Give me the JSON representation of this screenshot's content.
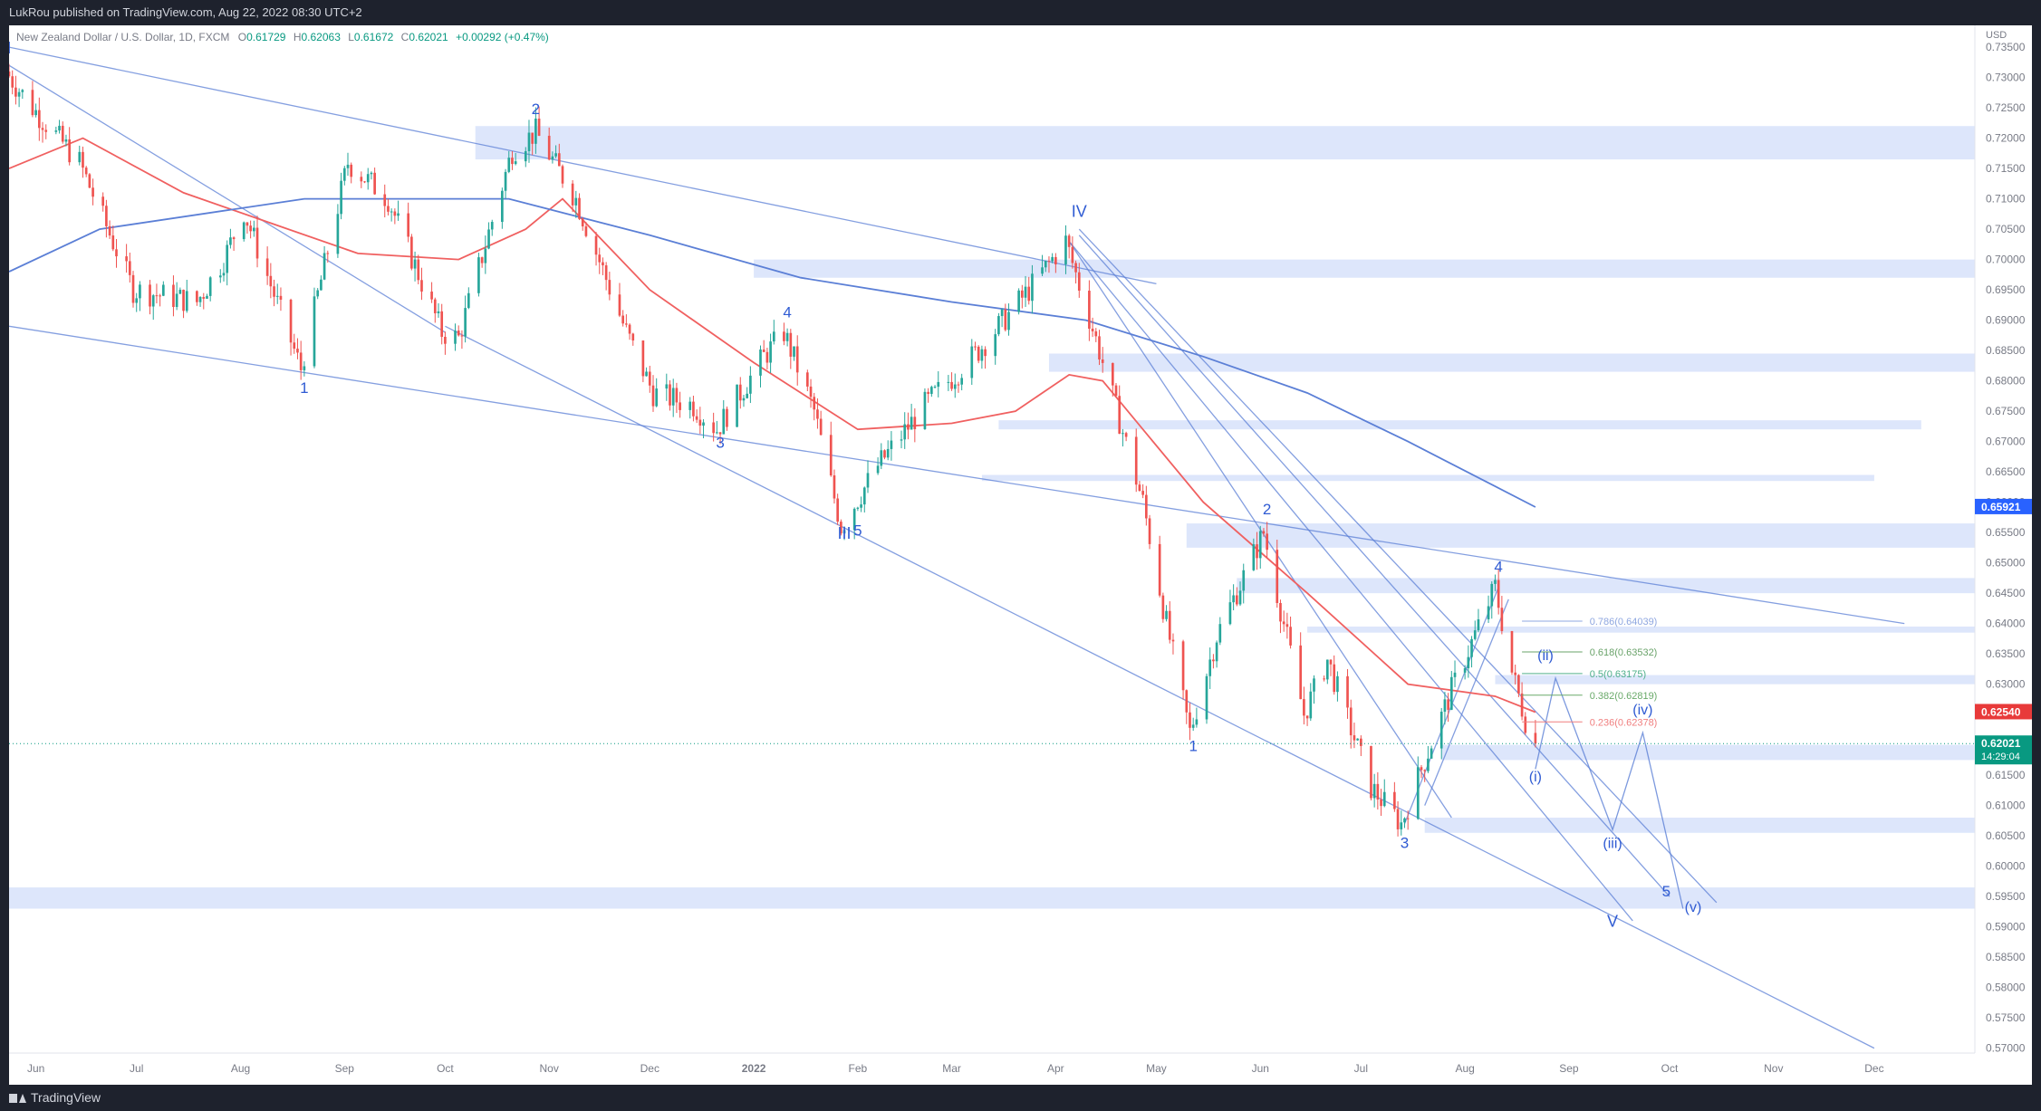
{
  "header": {
    "publisher_text": "LukRou published on TradingView.com, Aug 22, 2022 08:30 UTC+2"
  },
  "footer": {
    "brand_text": "TradingView"
  },
  "legend": {
    "symbol": "New Zealand Dollar / U.S. Dollar, 1D, FXCM",
    "o_label": "O",
    "o_value": "0.61729",
    "h_label": "H",
    "h_value": "0.62063",
    "l_label": "L",
    "l_value": "0.61672",
    "c_label": "C",
    "c_value": "0.62021",
    "change": "+0.00292 (+0.47%)"
  },
  "colors": {
    "up": "#26a69a",
    "down": "#ef5350",
    "line_blue": "#5b7fd6",
    "ma_red": "#f06060",
    "zone": "#dde6fb",
    "wave_label": "#2f5bd3",
    "badge_blue": "#2962ff",
    "badge_red": "#e83a3a",
    "badge_green": "#089981"
  },
  "chart_data": {
    "type": "candlestick",
    "title": "",
    "price_axis_unit": "USD",
    "y_ticks": [
      "0.73500",
      "0.73000",
      "0.72500",
      "0.72000",
      "0.71500",
      "0.71000",
      "0.70500",
      "0.70000",
      "0.69500",
      "0.69000",
      "0.68500",
      "0.68000",
      "0.67500",
      "0.67000",
      "0.66500",
      "0.66000",
      "0.65500",
      "0.65000",
      "0.64500",
      "0.64000",
      "0.63500",
      "0.63000",
      "0.62500",
      "0.62000",
      "0.61500",
      "0.61000",
      "0.60500",
      "0.60000",
      "0.59500",
      "0.59000",
      "0.58500",
      "0.58000",
      "0.57500",
      "0.57000"
    ],
    "ylim": [
      0.5692,
      0.7386
    ],
    "x_ticks": [
      "Jun",
      "Jul",
      "Aug",
      "Sep",
      "Oct",
      "Nov",
      "Dec",
      "2022",
      "Feb",
      "Mar",
      "Apr",
      "May",
      "Jun",
      "Jul",
      "Aug",
      "Sep",
      "Oct",
      "Nov",
      "Dec"
    ],
    "x_range": [
      "2021-05-24",
      "2022-12-31"
    ],
    "price_path": [
      [
        "2021-05-24",
        0.731
      ],
      [
        "2021-06-01",
        0.725
      ],
      [
        "2021-06-15",
        0.716
      ],
      [
        "2021-07-01",
        0.695
      ],
      [
        "2021-07-20",
        0.693
      ],
      [
        "2021-07-28",
        0.7
      ],
      [
        "2021-08-03",
        0.708
      ],
      [
        "2021-08-20",
        0.682
      ],
      [
        "2021-09-03",
        0.716
      ],
      [
        "2021-09-15",
        0.71
      ],
      [
        "2021-10-01",
        0.688
      ],
      [
        "2021-10-06",
        0.687
      ],
      [
        "2021-10-22",
        0.718
      ],
      [
        "2021-10-29",
        0.721
      ],
      [
        "2021-11-10",
        0.71
      ],
      [
        "2021-11-25",
        0.688
      ],
      [
        "2021-12-03",
        0.678
      ],
      [
        "2021-12-15",
        0.676
      ],
      [
        "2021-12-22",
        0.672
      ],
      [
        "2022-01-05",
        0.684
      ],
      [
        "2022-01-11",
        0.688
      ],
      [
        "2022-01-20",
        0.675
      ],
      [
        "2022-01-28",
        0.656
      ],
      [
        "2022-02-08",
        0.666
      ],
      [
        "2022-02-22",
        0.676
      ],
      [
        "2022-03-10",
        0.685
      ],
      [
        "2022-03-25",
        0.695
      ],
      [
        "2022-04-05",
        0.703
      ],
      [
        "2022-04-15",
        0.685
      ],
      [
        "2022-04-28",
        0.66
      ],
      [
        "2022-05-05",
        0.64
      ],
      [
        "2022-05-12",
        0.622
      ],
      [
        "2022-05-20",
        0.638
      ],
      [
        "2022-06-03",
        0.655
      ],
      [
        "2022-06-15",
        0.625
      ],
      [
        "2022-06-22",
        0.634
      ],
      [
        "2022-07-05",
        0.613
      ],
      [
        "2022-07-14",
        0.607
      ],
      [
        "2022-07-20",
        0.616
      ],
      [
        "2022-07-29",
        0.629
      ],
      [
        "2022-08-11",
        0.646
      ],
      [
        "2022-08-16",
        0.632
      ],
      [
        "2022-08-22",
        0.6202
      ]
    ],
    "candle_count": 322,
    "moving_averages": [
      {
        "color": "#f06060",
        "points": [
          [
            "2021-05-24",
            0.715
          ],
          [
            "2021-06-15",
            0.72
          ],
          [
            "2021-07-15",
            0.711
          ],
          [
            "2021-08-10",
            0.706
          ],
          [
            "2021-09-05",
            0.701
          ],
          [
            "2021-10-05",
            0.7
          ],
          [
            "2021-10-25",
            0.705
          ],
          [
            "2021-11-05",
            0.71
          ],
          [
            "2021-12-01",
            0.695
          ],
          [
            "2022-01-01",
            0.683
          ],
          [
            "2022-02-01",
            0.672
          ],
          [
            "2022-03-01",
            0.673
          ],
          [
            "2022-03-20",
            0.675
          ],
          [
            "2022-04-05",
            0.681
          ],
          [
            "2022-04-15",
            0.68
          ],
          [
            "2022-05-15",
            0.66
          ],
          [
            "2022-06-15",
            0.645
          ],
          [
            "2022-07-15",
            0.63
          ],
          [
            "2022-08-10",
            0.628
          ],
          [
            "2022-08-22",
            0.6254
          ]
        ]
      },
      {
        "color": "#5b7fd6",
        "points": [
          [
            "2021-05-24",
            0.698
          ],
          [
            "2021-06-20",
            0.705
          ],
          [
            "2021-08-20",
            0.71
          ],
          [
            "2021-10-20",
            0.71
          ],
          [
            "2021-12-01",
            0.704
          ],
          [
            "2022-01-15",
            0.697
          ],
          [
            "2022-03-01",
            0.693
          ],
          [
            "2022-04-10",
            0.69
          ],
          [
            "2022-05-15",
            0.684
          ],
          [
            "2022-06-15",
            0.678
          ],
          [
            "2022-07-15",
            0.67
          ],
          [
            "2022-08-22",
            0.6592
          ]
        ]
      }
    ],
    "trendlines": [
      [
        [
          "2021-05-24",
          0.735
        ],
        [
          "2022-05-01",
          0.696
        ]
      ],
      [
        [
          "2021-05-24",
          0.689
        ],
        [
          "2022-12-10",
          0.64
        ]
      ],
      [
        [
          "2021-10-01",
          0.689
        ],
        [
          "2022-12-01",
          0.57
        ]
      ],
      [
        [
          "2021-05-24",
          0.732
        ],
        [
          "2021-10-01",
          0.688
        ]
      ],
      [
        [
          "2022-04-05",
          0.703
        ],
        [
          "2022-09-20",
          0.591
        ]
      ],
      [
        [
          "2022-04-08",
          0.705
        ],
        [
          "2022-10-15",
          0.594
        ]
      ],
      [
        [
          "2022-04-05",
          0.703
        ],
        [
          "2022-07-28",
          0.608
        ]
      ],
      [
        [
          "2022-04-08",
          0.704
        ],
        [
          "2022-10-01",
          0.595
        ]
      ],
      [
        [
          "2022-07-14",
          0.607
        ],
        [
          "2022-08-11",
          0.646
        ]
      ],
      [
        [
          "2022-07-20",
          0.61
        ],
        [
          "2022-08-14",
          0.644
        ]
      ]
    ],
    "zones": [
      [
        [
          "2021-10-10",
          "2022-12-31"
        ],
        [
          0.7165,
          0.722
        ]
      ],
      [
        [
          "2022-01-01",
          "2022-12-31"
        ],
        [
          0.697,
          0.7
        ]
      ],
      [
        [
          "2022-03-30",
          "2022-12-31"
        ],
        [
          0.6815,
          0.6845
        ]
      ],
      [
        [
          "2022-03-15",
          "2022-12-15"
        ],
        [
          0.672,
          0.6735
        ]
      ],
      [
        [
          "2022-03-10",
          "2022-12-01"
        ],
        [
          0.6635,
          0.6645
        ]
      ],
      [
        [
          "2022-05-10",
          "2022-12-31"
        ],
        [
          0.6525,
          0.6565
        ]
      ],
      [
        [
          "2022-05-25",
          "2022-12-31"
        ],
        [
          0.645,
          0.6475
        ]
      ],
      [
        [
          "2022-06-15",
          "2022-12-31"
        ],
        [
          0.6385,
          0.6395
        ]
      ],
      [
        [
          "2022-08-10",
          "2022-12-31"
        ],
        [
          0.63,
          0.6315
        ]
      ],
      [
        [
          "2022-07-25",
          "2022-12-31"
        ],
        [
          0.6175,
          0.62
        ]
      ],
      [
        [
          "2022-07-20",
          "2022-12-31"
        ],
        [
          0.6055,
          0.608
        ]
      ],
      [
        [
          "2021-05-24",
          "2022-12-31"
        ],
        [
          0.593,
          0.5965
        ]
      ]
    ],
    "projection": [
      [
        "2022-08-22",
        0.616
      ],
      [
        "2022-08-28",
        0.631
      ],
      [
        "2022-09-14",
        0.606
      ],
      [
        "2022-09-23",
        0.622
      ],
      [
        "2022-10-05",
        0.593
      ]
    ],
    "fibonacci": [
      {
        "label": "0.786(0.64039)",
        "value": 0.64039,
        "color": "#8fa7e0"
      },
      {
        "label": "0.618(0.63532)",
        "value": 0.63532,
        "color": "#6aa36a"
      },
      {
        "label": "0.5(0.63175)",
        "value": 0.63175,
        "color": "#50b08a"
      },
      {
        "label": "0.382(0.62819)",
        "value": 0.62819,
        "color": "#6aaa6a"
      },
      {
        "label": "0.236(0.62378)",
        "value": 0.62378,
        "color": "#f07f7f"
      }
    ],
    "waves": [
      {
        "t": "I",
        "date": "2021-05-24",
        "y": 0.734,
        "size": 18
      },
      {
        "t": "1",
        "date": "2021-08-20",
        "y": 0.678,
        "size": 17
      },
      {
        "t": "2",
        "date": "2021-10-28",
        "y": 0.724,
        "size": 17
      },
      {
        "t": "3",
        "date": "2021-12-22",
        "y": 0.669,
        "size": 17
      },
      {
        "t": "4",
        "date": "2022-01-11",
        "y": 0.6905,
        "size": 17
      },
      {
        "t": "III",
        "date": "2022-01-28",
        "y": 0.654,
        "size": 18
      },
      {
        "t": "5",
        "date": "2022-02-01",
        "y": 0.6545,
        "size": 17
      },
      {
        "t": "IV",
        "date": "2022-04-08",
        "y": 0.707,
        "size": 18
      },
      {
        "t": "1",
        "date": "2022-05-12",
        "y": 0.619,
        "size": 17
      },
      {
        "t": "2",
        "date": "2022-06-03",
        "y": 0.658,
        "size": 17
      },
      {
        "t": "3",
        "date": "2022-07-14",
        "y": 0.603,
        "size": 17
      },
      {
        "t": "4",
        "date": "2022-08-11",
        "y": 0.6485,
        "size": 17
      },
      {
        "t": "(ii)",
        "date": "2022-08-25",
        "y": 0.634,
        "size": 16
      },
      {
        "t": "(i)",
        "date": "2022-08-22",
        "y": 0.614,
        "size": 16
      },
      {
        "t": "(iv)",
        "date": "2022-09-23",
        "y": 0.625,
        "size": 16
      },
      {
        "t": "(iii)",
        "date": "2022-09-14",
        "y": 0.603,
        "size": 16
      },
      {
        "t": "5",
        "date": "2022-09-30",
        "y": 0.595,
        "size": 17
      },
      {
        "t": "(v)",
        "date": "2022-10-08",
        "y": 0.5925,
        "size": 16
      },
      {
        "t": "V",
        "date": "2022-09-14",
        "y": 0.59,
        "size": 18
      }
    ],
    "price_badges": [
      {
        "label": "0.65921",
        "value": 0.65921,
        "color": "#2962ff",
        "sub": ""
      },
      {
        "label": "0.62540",
        "value": 0.6254,
        "color": "#e83a3a",
        "sub": ""
      },
      {
        "label": "0.62021",
        "value": 0.62021,
        "color": "#089981",
        "sub": "14:29:04"
      }
    ]
  }
}
